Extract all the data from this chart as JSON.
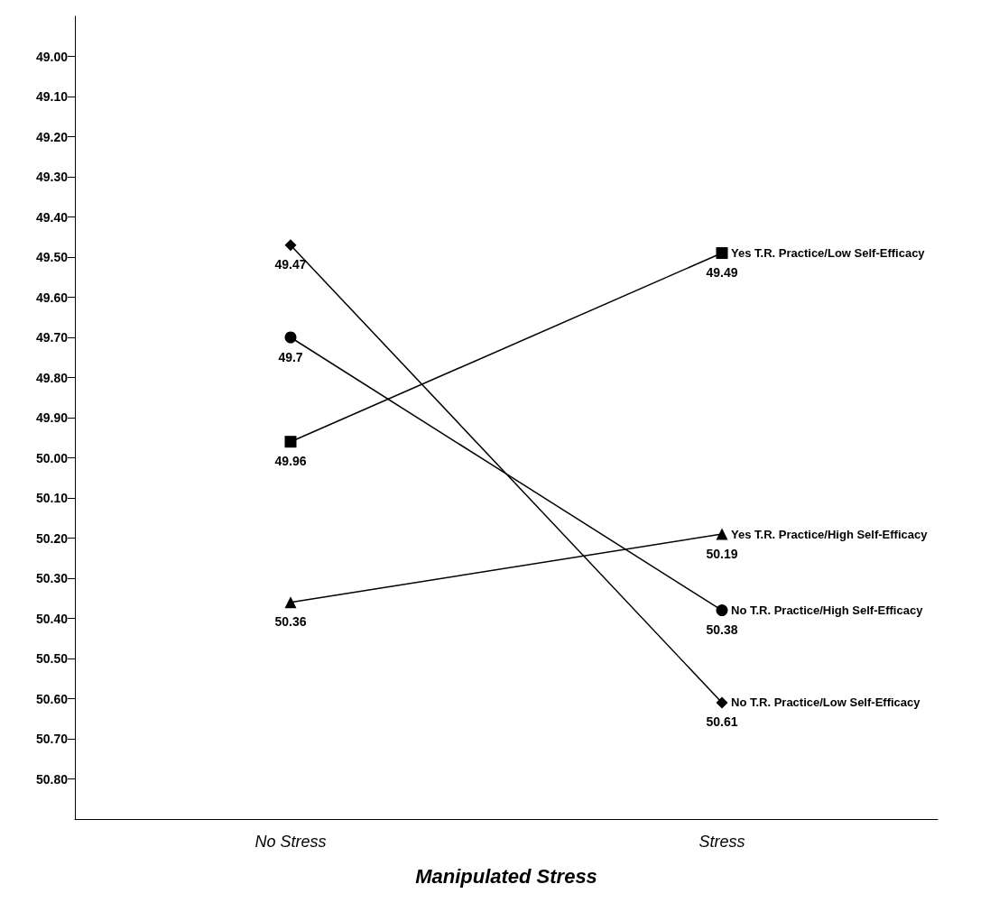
{
  "chart_data": {
    "type": "line",
    "xlabel": "Manipulated Stress",
    "categories": [
      "No Stress",
      "Stress"
    ],
    "series": [
      {
        "name": "Yes T.R. Practice/Low Self-Efficacy",
        "color": "#000000",
        "marker": "square",
        "values": [
          49.96,
          49.49
        ]
      },
      {
        "name": "Yes T.R. Practice/High Self-Efficacy",
        "color": "#000000",
        "marker": "triangle",
        "values": [
          50.36,
          50.19
        ]
      },
      {
        "name": "No T.R. Practice/High Self-Efficacy",
        "color": "#000000",
        "marker": "circle",
        "values": [
          49.7,
          50.38
        ]
      },
      {
        "name": "No T.R. Practice/Low Self-Efficacy",
        "color": "#000000",
        "marker": "diamond",
        "values": [
          49.47,
          50.61
        ]
      }
    ],
    "ylim": [
      50.9,
      48.9
    ],
    "yticks": [
      {
        "value": 49,
        "label": "49.00"
      },
      {
        "value": 49.1,
        "label": "49.10"
      },
      {
        "value": 49.2,
        "label": "49.20"
      },
      {
        "value": 49.3,
        "label": "49.30"
      },
      {
        "value": 49.4,
        "label": "49.40"
      },
      {
        "value": 49.5,
        "label": "49.50"
      },
      {
        "value": 49.6,
        "label": "49.60"
      },
      {
        "value": 49.7,
        "label": "49.70"
      },
      {
        "value": 49.8,
        "label": "49.80"
      },
      {
        "value": 49.9,
        "label": "49.90"
      },
      {
        "value": 50,
        "label": "50.00"
      },
      {
        "value": 50.1,
        "label": "50.10"
      },
      {
        "value": 50.2,
        "label": "50.20"
      },
      {
        "value": 50.3,
        "label": "50.30"
      },
      {
        "value": 50.4,
        "label": "50.40"
      },
      {
        "value": 50.5,
        "label": "50.50"
      },
      {
        "value": 50.6,
        "label": "50.60"
      },
      {
        "value": 50.7,
        "label": "50.70"
      },
      {
        "value": 50.8,
        "label": "50.80"
      }
    ],
    "data_labels": true,
    "legend": false,
    "grid": false,
    "line_style": "solid"
  }
}
